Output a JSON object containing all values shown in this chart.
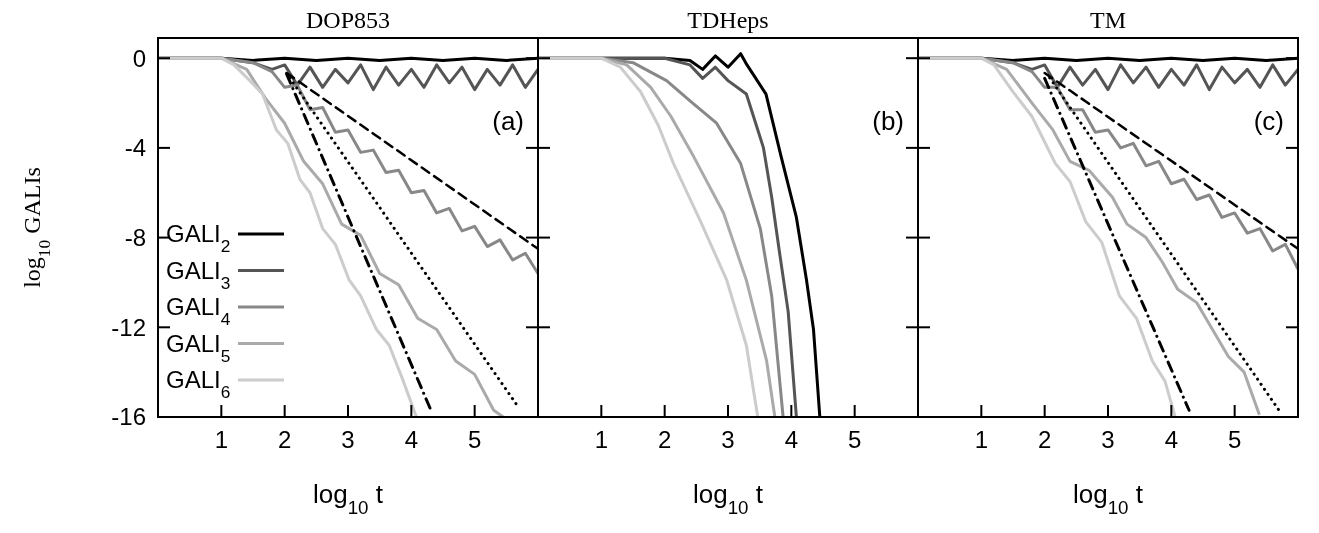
{
  "chart_data": [
    {
      "type": "line",
      "title": "DOP853",
      "xlabel": "log$_{10}$ t",
      "ylabel": "log$_{10}$ GALIs",
      "annotations": [
        "(a)"
      ],
      "xlim": [
        0,
        6
      ],
      "ylim": [
        -16,
        0.9
      ],
      "xticks": [
        1,
        2,
        3,
        4,
        5
      ],
      "yticks": [
        0,
        -4,
        -8,
        -12,
        -16
      ],
      "legend": "bottom left",
      "series": [
        {
          "name": "GALI$_{2}$",
          "color": "#000000",
          "x": [
            0,
            1,
            1.5,
            2,
            2.5,
            3,
            3.5,
            4,
            4.5,
            5,
            5.5,
            6
          ],
          "values": [
            0,
            0,
            -0.1,
            0,
            -0.1,
            0,
            -0.1,
            0,
            -0.1,
            0,
            -0.1,
            0
          ]
        },
        {
          "name": "GALI$_{3}$",
          "color": "#555555",
          "x": [
            0,
            1,
            1.5,
            1.8,
            2,
            2.2,
            2.4,
            2.6,
            2.8,
            3,
            3.2,
            3.4,
            3.6,
            3.8,
            4,
            4.2,
            4.4,
            4.6,
            4.8,
            5,
            5.2,
            5.4,
            5.6,
            5.8,
            6
          ],
          "values": [
            0,
            0,
            -0.2,
            -0.5,
            -0.3,
            -1.2,
            -0.4,
            -1.3,
            -0.5,
            -1.1,
            -0.3,
            -1.4,
            -0.4,
            -1.2,
            -0.5,
            -1.3,
            -0.3,
            -1.1,
            -0.4,
            -1.4,
            -0.5,
            -1.2,
            -0.3,
            -1.3,
            -0.5
          ]
        },
        {
          "name": "GALI$_{4}$",
          "color": "#888888",
          "x": [
            0,
            1,
            1.5,
            1.8,
            2,
            2.2,
            2.4,
            2.6,
            2.8,
            3,
            3.2,
            3.4,
            3.6,
            3.8,
            4,
            4.2,
            4.4,
            4.6,
            4.8,
            5,
            5.2,
            5.4,
            5.6,
            5.8,
            6
          ],
          "values": [
            0,
            0,
            -0.2,
            -0.6,
            -1.3,
            -1.2,
            -2.3,
            -2.2,
            -3.3,
            -3.2,
            -4.2,
            -4.1,
            -5.1,
            -5.0,
            -6.0,
            -5.9,
            -6.9,
            -6.7,
            -7.7,
            -7.5,
            -8.4,
            -8.1,
            -9.0,
            -8.7,
            -9.6
          ]
        },
        {
          "name": "GALI$_{5}$",
          "color": "#aaaaaa",
          "x": [
            0,
            1,
            1.4,
            1.7,
            2,
            2.3,
            2.6,
            2.9,
            3.2,
            3.5,
            3.8,
            4.1,
            4.4,
            4.7,
            5,
            5.3,
            5.45
          ],
          "values": [
            0,
            0,
            -0.5,
            -1.8,
            -2.9,
            -4.6,
            -5.6,
            -7.4,
            -7.9,
            -9.6,
            -10.1,
            -11.6,
            -12.1,
            -13.5,
            -14.1,
            -15.7,
            -16
          ]
        },
        {
          "name": "GALI$_{6}$",
          "color": "#cccccc",
          "x": [
            0,
            1,
            1.2,
            1.45,
            1.65,
            1.87,
            2.05,
            2.24,
            2.4,
            2.6,
            2.8,
            3.02,
            3.2,
            3.45,
            3.65,
            3.86,
            4.08
          ],
          "values": [
            0,
            0,
            -0.3,
            -1.0,
            -1.6,
            -3.2,
            -3.8,
            -5.4,
            -6.0,
            -7.6,
            -8.3,
            -9.9,
            -10.6,
            -12.1,
            -12.8,
            -14.3,
            -16
          ]
        },
        {
          "color": "#000000",
          "line_style": "dashed",
          "x": [
            2.03,
            6
          ],
          "values": [
            -0.66,
            -8.5
          ]
        },
        {
          "color": "#000000",
          "line_style": "dotted",
          "x": [
            2.08,
            5.7
          ],
          "values": [
            -0.88,
            -15.6
          ]
        },
        {
          "color": "#000000",
          "line_style": "dashdot",
          "x": [
            2.03,
            4.31
          ],
          "values": [
            -0.7,
            -15.7
          ]
        }
      ]
    },
    {
      "type": "line",
      "title": "TDHeps",
      "xlabel": "log$_{10}$ t",
      "annotations": [
        "(b)"
      ],
      "xlim": [
        0,
        6
      ],
      "ylim": [
        -16,
        0.9
      ],
      "xticks": [
        1,
        2,
        3,
        4,
        5
      ],
      "yticks": [
        0,
        -4,
        -8,
        -12,
        -16
      ],
      "tick_labels": "x",
      "series": [
        {
          "color": "#000000",
          "x": [
            0,
            1,
            2,
            2.4,
            2.6,
            2.8,
            3.0,
            3.2,
            3.3,
            3.6,
            3.84,
            4.08,
            4.24,
            4.35,
            4.45
          ],
          "values": [
            0,
            0,
            0,
            -0.1,
            -0.5,
            0.1,
            -0.4,
            0.2,
            -0.3,
            -1.6,
            -4.4,
            -7.1,
            -9.9,
            -12.1,
            -16
          ]
        },
        {
          "color": "#555555",
          "x": [
            0,
            1,
            2,
            2.4,
            2.6,
            2.8,
            3.0,
            3.29,
            3.56,
            3.69,
            3.8,
            3.95,
            4.08
          ],
          "values": [
            0,
            0,
            0,
            -0.3,
            -0.9,
            -0.4,
            -1.0,
            -1.6,
            -4,
            -6.2,
            -8.4,
            -11.3,
            -16
          ]
        },
        {
          "color": "#888888",
          "x": [
            0,
            1,
            1.5,
            2.03,
            2.4,
            2.82,
            3.2,
            3.51,
            3.69,
            3.87
          ],
          "values": [
            0,
            0,
            -0.2,
            -1.0,
            -1.9,
            -2.9,
            -4.7,
            -7.6,
            -10.6,
            -16
          ]
        },
        {
          "color": "#aaaaaa",
          "x": [
            0,
            1,
            1.4,
            1.78,
            2.1,
            2.46,
            2.93,
            3.29,
            3.61,
            3.74
          ],
          "values": [
            0,
            0,
            -0.3,
            -1.3,
            -2.6,
            -4.4,
            -6.9,
            -9.9,
            -13.5,
            -16
          ]
        },
        {
          "color": "#cccccc",
          "x": [
            0,
            1,
            1.3,
            1.62,
            1.9,
            2.14,
            2.57,
            2.98,
            3.29,
            3.47
          ],
          "values": [
            0,
            0,
            -0.4,
            -1.5,
            -3.0,
            -4.7,
            -7.3,
            -9.9,
            -12.8,
            -16
          ]
        }
      ]
    },
    {
      "type": "line",
      "title": "TM",
      "xlabel": "log$_{10}$ t",
      "annotations": [
        "(c)"
      ],
      "xlim": [
        0,
        6
      ],
      "ylim": [
        -16,
        0.9
      ],
      "xticks": [
        1,
        2,
        3,
        4,
        5
      ],
      "yticks": [
        0,
        -4,
        -8,
        -12,
        -16
      ],
      "tick_labels": "x",
      "series": [
        {
          "color": "#000000",
          "x": [
            0,
            1,
            1.5,
            2,
            2.5,
            3,
            3.5,
            4,
            4.5,
            5,
            5.5,
            6
          ],
          "values": [
            0,
            0,
            -0.1,
            0,
            -0.1,
            0,
            -0.1,
            0,
            -0.1,
            0,
            -0.1,
            0
          ]
        },
        {
          "color": "#555555",
          "x": [
            0,
            1,
            1.5,
            1.8,
            2,
            2.2,
            2.4,
            2.6,
            2.8,
            3,
            3.2,
            3.4,
            3.6,
            3.8,
            4,
            4.2,
            4.4,
            4.6,
            4.8,
            5,
            5.2,
            5.4,
            5.6,
            5.8,
            6
          ],
          "values": [
            0,
            0,
            -0.2,
            -0.5,
            -0.3,
            -1.3,
            -0.4,
            -1.2,
            -0.5,
            -1.4,
            -0.3,
            -1.1,
            -0.4,
            -1.3,
            -0.5,
            -1.2,
            -0.3,
            -1.4,
            -0.4,
            -1.1,
            -0.5,
            -1.3,
            -0.3,
            -1.2,
            -0.5
          ]
        },
        {
          "color": "#888888",
          "x": [
            0,
            1,
            1.5,
            1.8,
            2,
            2.2,
            2.4,
            2.6,
            2.8,
            3,
            3.2,
            3.4,
            3.6,
            3.8,
            4,
            4.2,
            4.4,
            4.6,
            4.8,
            5,
            5.2,
            5.4,
            5.6,
            5.8,
            6
          ],
          "values": [
            0,
            0,
            -0.2,
            -0.6,
            -1.3,
            -1.3,
            -2.3,
            -2.3,
            -3.3,
            -3.2,
            -4.0,
            -3.8,
            -4.8,
            -4.6,
            -5.6,
            -5.4,
            -6.3,
            -6.1,
            -7.1,
            -6.9,
            -7.8,
            -7.6,
            -8.6,
            -8.3,
            -9.4
          ]
        },
        {
          "color": "#aaaaaa",
          "x": [
            0,
            1,
            1.4,
            1.8,
            2.13,
            2.4,
            2.7,
            3.07,
            3.3,
            3.6,
            3.86,
            4.1,
            4.4,
            4.65,
            4.9,
            5.15,
            5.39
          ],
          "values": [
            0,
            0,
            -0.5,
            -2.0,
            -3.2,
            -4.6,
            -5.0,
            -6.2,
            -7.4,
            -8.0,
            -9.1,
            -10.3,
            -10.9,
            -12.1,
            -13.3,
            -14.0,
            -15.9
          ]
        },
        {
          "color": "#cccccc",
          "x": [
            0,
            1,
            1.2,
            1.5,
            1.8,
            2.17,
            2.4,
            2.65,
            2.9,
            3.18,
            3.45,
            3.7,
            3.9,
            4.06
          ],
          "values": [
            0,
            0,
            -0.3,
            -1.5,
            -2.6,
            -4.7,
            -5.5,
            -7.3,
            -8.2,
            -10.6,
            -11.6,
            -13.5,
            -14.4,
            -16
          ]
        },
        {
          "color": "#000000",
          "line_style": "dashed",
          "x": [
            2,
            6
          ],
          "values": [
            -0.66,
            -8.5
          ]
        },
        {
          "color": "#000000",
          "line_style": "dotted",
          "x": [
            2.08,
            5.7
          ],
          "values": [
            -0.88,
            -15.7
          ]
        },
        {
          "color": "#000000",
          "line_style": "dashdot",
          "x": [
            2,
            4.28
          ],
          "values": [
            -0.9,
            -15.7
          ]
        }
      ]
    }
  ]
}
